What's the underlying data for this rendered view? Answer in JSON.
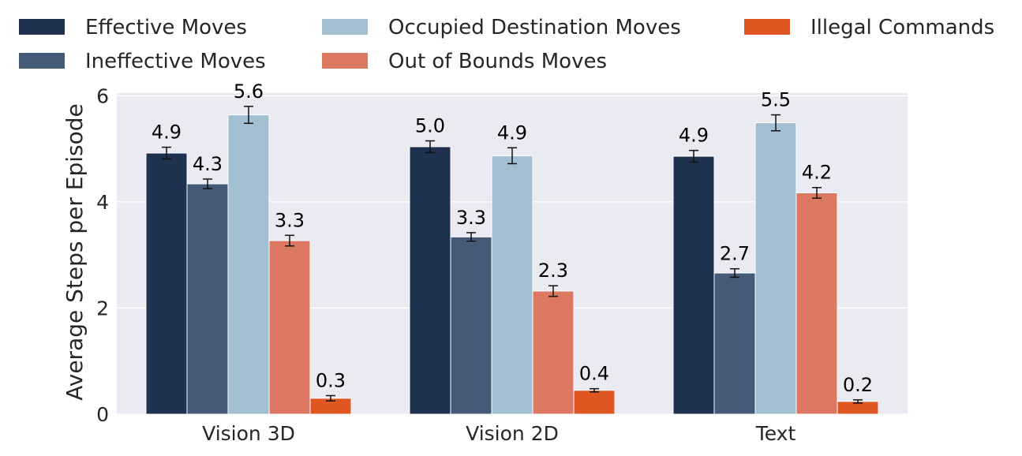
{
  "chart_data": {
    "type": "bar",
    "title": "",
    "xlabel": "",
    "ylabel": "Average Steps per Episode",
    "categories": [
      "Vision 3D",
      "Vision 2D",
      "Text"
    ],
    "ylim": [
      0,
      6.05
    ],
    "yticks": [
      0,
      2,
      4,
      6
    ],
    "grid": true,
    "legend_position": "top",
    "series": [
      {
        "name": "Effective Moves",
        "color": "#1f3250",
        "values": [
          4.92,
          5.04,
          4.86
        ],
        "errors": [
          0.11,
          0.11,
          0.11
        ],
        "labels": [
          "4.9",
          "5.0",
          "4.9"
        ]
      },
      {
        "name": "Ineffective Moves",
        "color": "#455a77",
        "values": [
          4.34,
          3.34,
          2.66
        ],
        "errors": [
          0.09,
          0.08,
          0.08
        ],
        "labels": [
          "4.3",
          "3.3",
          "2.7"
        ]
      },
      {
        "name": "Occupied Destination Moves",
        "color": "#a2c0d2",
        "values": [
          5.64,
          4.87,
          5.49
        ],
        "errors": [
          0.16,
          0.15,
          0.15
        ],
        "labels": [
          "5.6",
          "4.9",
          "5.5"
        ]
      },
      {
        "name": "Out of Bounds Moves",
        "color": "#dc7861",
        "values": [
          3.27,
          2.32,
          4.17
        ],
        "errors": [
          0.1,
          0.1,
          0.1
        ],
        "labels": [
          "3.3",
          "2.3",
          "4.2"
        ]
      },
      {
        "name": "Illegal Commands",
        "color": "#e05623",
        "values": [
          0.3,
          0.45,
          0.24
        ],
        "errors": [
          0.05,
          0.03,
          0.03
        ],
        "labels": [
          "0.3",
          "0.4",
          "0.2"
        ]
      }
    ]
  }
}
